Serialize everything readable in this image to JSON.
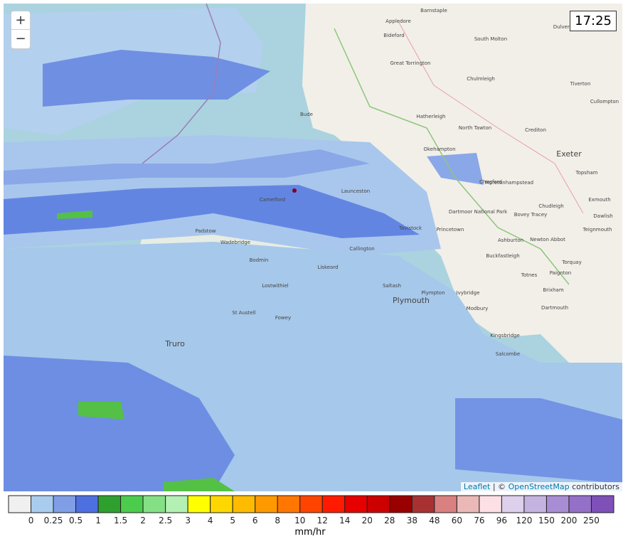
{
  "controls": {
    "zoom_in": "+",
    "zoom_out": "−"
  },
  "time": "17:25",
  "attribution": {
    "leaflet": "Leaflet",
    "separator": "| ©",
    "osm": "OpenStreetMap",
    "tail": "contributors"
  },
  "places": [
    "Barnstaple",
    "Appledore",
    "Bideford",
    "South Molton",
    "Dulverton",
    "Great Torrington",
    "Chulmleigh",
    "Tiverton",
    "Cullompton",
    "Bude",
    "Hatherleigh",
    "North Tawton",
    "Crediton",
    "Okehampton",
    "Exeter",
    "Topsham",
    "Launceston",
    "Camelford",
    "Chagford",
    "Moretonhampstead",
    "Dartmoor National Park",
    "Chudleigh",
    "Exmouth",
    "Dawlish",
    "Padstow",
    "Tavistock",
    "Bovey Tracey",
    "Teignmouth",
    "Wadebridge",
    "Princetown",
    "Ashburton",
    "Newton Abbot",
    "Bodmin",
    "Liskeard",
    "Callington",
    "Buckfastleigh",
    "Torquay",
    "Paignton",
    "Lostwithiel",
    "Saltash",
    "Plympton",
    "Ivybridge",
    "Totnes",
    "Brixham",
    "St Austell",
    "Fowey",
    "Plymouth",
    "Modbury",
    "Dartmouth",
    "Truro",
    "Kingsbridge",
    "Salcombe"
  ],
  "legend": {
    "unit": "mm/hr",
    "colors": [
      "#f0f0f0",
      "#a9ccee",
      "#7f9ee6",
      "#4e6fe0",
      "#2ea02e",
      "#4ccc4c",
      "#85e085",
      "#b3f0b3",
      "#ffff00",
      "#ffd700",
      "#ffbb00",
      "#ff9900",
      "#ff7700",
      "#ff4400",
      "#ff1a00",
      "#e60000",
      "#cc0000",
      "#990000",
      "#a83232",
      "#d98080",
      "#ebb8b8",
      "#fce0e6",
      "#ddd0ec",
      "#c4b2e0",
      "#a98dd4",
      "#9470c8",
      "#7e50b8"
    ],
    "labels": [
      0,
      0.25,
      0.5,
      1,
      1.5,
      2,
      2.5,
      3,
      4,
      5,
      6,
      8,
      10,
      12,
      14,
      20,
      28,
      38,
      48,
      60,
      76,
      96,
      120,
      150,
      200,
      250
    ]
  }
}
